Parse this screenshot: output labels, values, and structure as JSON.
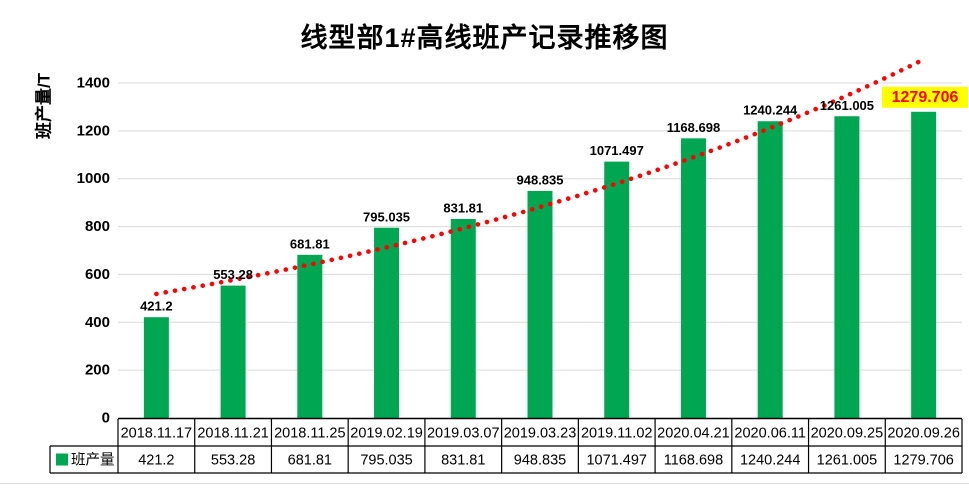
{
  "chart": {
    "title": "线型部1#高线班产记录推移图",
    "ylabel": "班产量/T"
  },
  "chart_data": {
    "type": "bar",
    "title": "线型部1#高线班产记录推移图",
    "xlabel": "",
    "ylabel": "班产量/T",
    "categories": [
      "2018.11.17",
      "2018.11.21",
      "2018.11.25",
      "2019.02.19",
      "2019.03.07",
      "2019.03.23",
      "2019.11.02",
      "2020.04.21",
      "2020.06.11",
      "2020.09.25",
      "2020.09.26"
    ],
    "series": [
      {
        "name": "班产量",
        "values": [
          421.2,
          553.28,
          681.81,
          795.035,
          831.81,
          948.835,
          1071.497,
          1168.698,
          1240.244,
          1261.005,
          1279.706
        ]
      }
    ],
    "value_labels": [
      "421.2",
      "553.28",
      "681.81",
      "795.035",
      "831.81",
      "948.835",
      "1071.497",
      "1168.698",
      "1240.244",
      "1261.005",
      "1279.706"
    ],
    "ylim": [
      0,
      1400
    ],
    "yticks": [
      0,
      200,
      400,
      600,
      800,
      1000,
      1200,
      1400
    ],
    "grid": "horizontal-only",
    "grid_color": "#D9D9D9",
    "bar_color": "#00A651",
    "label_color": "#000000",
    "axis_color": "#000000",
    "legend_position": "data-table-stub",
    "data_table": true,
    "highlight_last_label": {
      "text": "1279.706",
      "text_color": "#FF0000",
      "bg_color": "#FFFF00"
    },
    "trendline": {
      "type": "exponential",
      "a": 466.4,
      "b": 0.1061,
      "color": "#FF0000",
      "style": "round-dotted"
    }
  }
}
